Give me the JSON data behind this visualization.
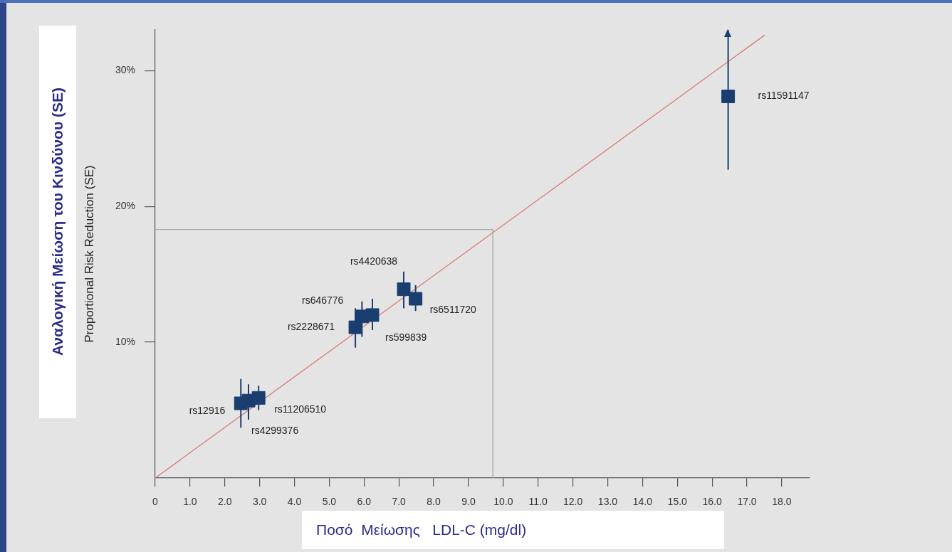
{
  "chart_data": {
    "type": "scatter",
    "xlabel": "Ποσό  Μείωσης   LDL-C (mg/dl)",
    "ylabel": "Proportional Risk Reduction (SE)",
    "annotations": [
      "Αναλογική Μείωση του Κινδύνου (SE)",
      {
        "text": "rs12916",
        "x": 2.46,
        "y": 5.5
      },
      {
        "text": "rs4299376",
        "x": 2.68,
        "y": 5.7
      },
      {
        "text": "rs11206510",
        "x": 2.97,
        "y": 5.9
      },
      {
        "text": "rs2228671",
        "x": 5.75,
        "y": 11.1
      },
      {
        "text": "rs646776",
        "x": 5.94,
        "y": 11.9
      },
      {
        "text": "rs599839",
        "x": 6.24,
        "y": 12.0
      },
      {
        "text": "rs4420638",
        "x": 7.14,
        "y": 13.9
      },
      {
        "text": "rs6511720",
        "x": 7.48,
        "y": 13.2
      },
      {
        "text": "rs11591147",
        "x": 16.46,
        "y": 28.1
      }
    ],
    "series": [
      {
        "color": "#1b3e70",
        "marker": "square",
        "x": [
          2.46,
          2.68,
          2.97,
          5.75,
          5.94,
          6.24,
          7.14,
          7.48,
          16.46
        ],
        "values": [
          5.5,
          5.7,
          5.9,
          11.1,
          11.9,
          12.0,
          13.9,
          13.2,
          28.1
        ],
        "errors": [
          [
            3.7,
            7.3
          ],
          [
            4.3,
            6.9
          ],
          [
            5.0,
            6.8
          ],
          [
            9.6,
            12.5
          ],
          [
            10.4,
            13.0
          ],
          [
            10.9,
            13.2
          ],
          [
            12.5,
            15.2
          ],
          [
            12.3,
            14.2
          ],
          [
            22.7,
            33.0
          ]
        ]
      },
      {
        "type": "line",
        "color": "#d9786f",
        "x": [
          0,
          17.5
        ],
        "values": [
          0,
          32.6
        ]
      },
      {
        "type": "line",
        "color": "#a8a8a8",
        "x": [
          0,
          9.7,
          9.7
        ],
        "values": [
          18.3,
          18.3,
          0
        ]
      }
    ],
    "xlim": [
      0,
      18.8
    ],
    "ylim": [
      0,
      33
    ],
    "xticks": [
      0,
      {
        "value": 1,
        "label": "1.0"
      },
      {
        "value": 2,
        "label": "2.0"
      },
      {
        "value": 3,
        "label": "3.0"
      },
      {
        "value": 4,
        "label": "4.0"
      },
      {
        "value": 5,
        "label": "5.0"
      },
      {
        "value": 6,
        "label": "6.0"
      },
      {
        "value": 7,
        "label": "7.0"
      },
      {
        "value": 8,
        "label": "8.0"
      },
      {
        "value": 9,
        "label": "9.0"
      },
      {
        "value": 10,
        "label": "10.0"
      },
      {
        "value": 11,
        "label": "11.0"
      },
      {
        "value": 12,
        "label": "12.0"
      },
      {
        "value": 13,
        "label": "13.0"
      },
      {
        "value": 14,
        "label": "14.0"
      },
      {
        "value": 15,
        "label": "15.0"
      },
      {
        "value": 16,
        "label": "16.0"
      },
      {
        "value": 17,
        "label": "17.0"
      },
      {
        "value": 18,
        "label": "18.0"
      }
    ],
    "yticks": [
      {
        "value": 10,
        "label": "10%"
      },
      {
        "value": 20,
        "label": "20%"
      },
      {
        "value": 30,
        "label": "30%"
      }
    ]
  }
}
